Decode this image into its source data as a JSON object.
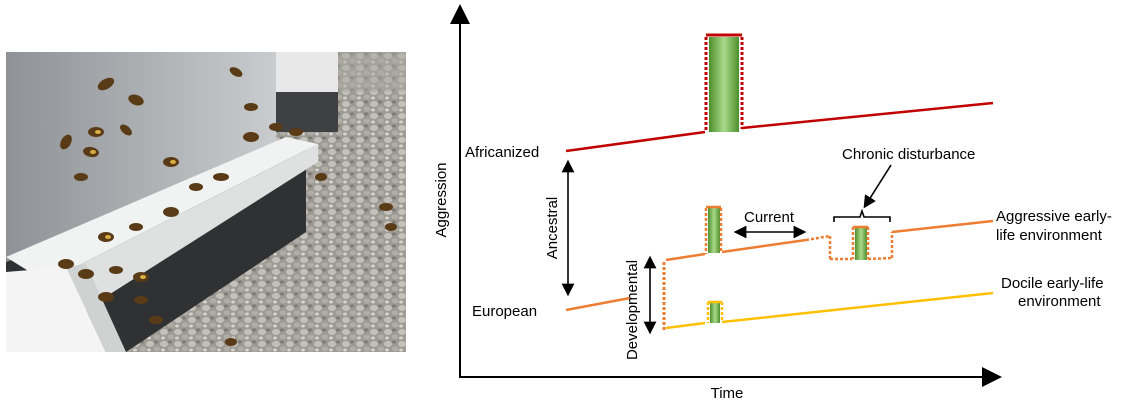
{
  "photo": {
    "subject": "honey bees on the landing board of white beehive boxes on gravel"
  },
  "diagram": {
    "y_axis_label": "Aggression",
    "x_axis_label": "Time",
    "africanized_label": "Africanized",
    "european_label": "European",
    "ancestral_label": "Ancestral",
    "developmental_label": "Developmental",
    "current_label": "Current",
    "chronic_label": "Chronic disturbance",
    "aggressive_env_label_line1": "Aggressive early-",
    "aggressive_env_label_line2": "life environment",
    "docile_env_label_line1": "Docile early-life",
    "docile_env_label_line2": "environment",
    "colors": {
      "africanized": "#c00000",
      "aggressive": "#ed7d31",
      "docile": "#ffc000",
      "disturbance_bar": "#70ad47"
    }
  }
}
